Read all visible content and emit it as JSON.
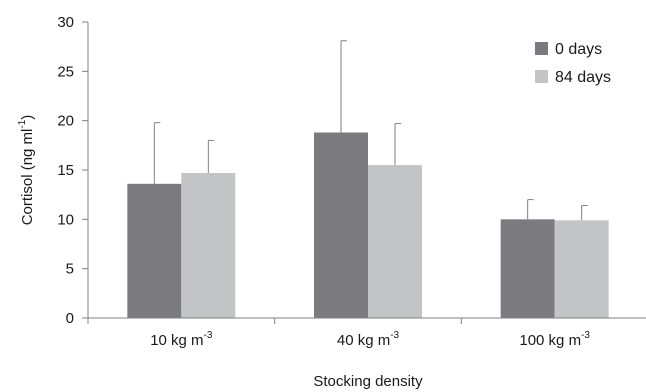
{
  "chart_data": {
    "type": "bar",
    "title": "",
    "xlabel": "Stocking density",
    "ylabel": "Cortisol (ng ml",
    "ylabel_sup": "-1",
    "ylabel_suffix": ")",
    "ylim": [
      0,
      30
    ],
    "yticks": [
      0,
      5,
      10,
      15,
      20,
      25,
      30
    ],
    "ytick_labels": [
      "0",
      "5",
      "10",
      "15",
      "20",
      "25",
      "30"
    ],
    "grid": false,
    "legend_position": "top-right",
    "categories": [
      {
        "main": "10 kg m",
        "sup": "-3"
      },
      {
        "main": "40 kg m",
        "sup": "-3"
      },
      {
        "main": "100 kg m",
        "sup": "-3"
      }
    ],
    "series": [
      {
        "name": "0 days",
        "color": "#7b7a7e",
        "values": [
          13.6,
          18.8,
          10.0
        ],
        "errors": [
          6.2,
          9.3,
          2.0
        ]
      },
      {
        "name": "84 days",
        "color": "#c3c4c6",
        "values": [
          14.7,
          15.5,
          9.9
        ],
        "errors": [
          3.3,
          4.2,
          1.5
        ]
      }
    ]
  }
}
